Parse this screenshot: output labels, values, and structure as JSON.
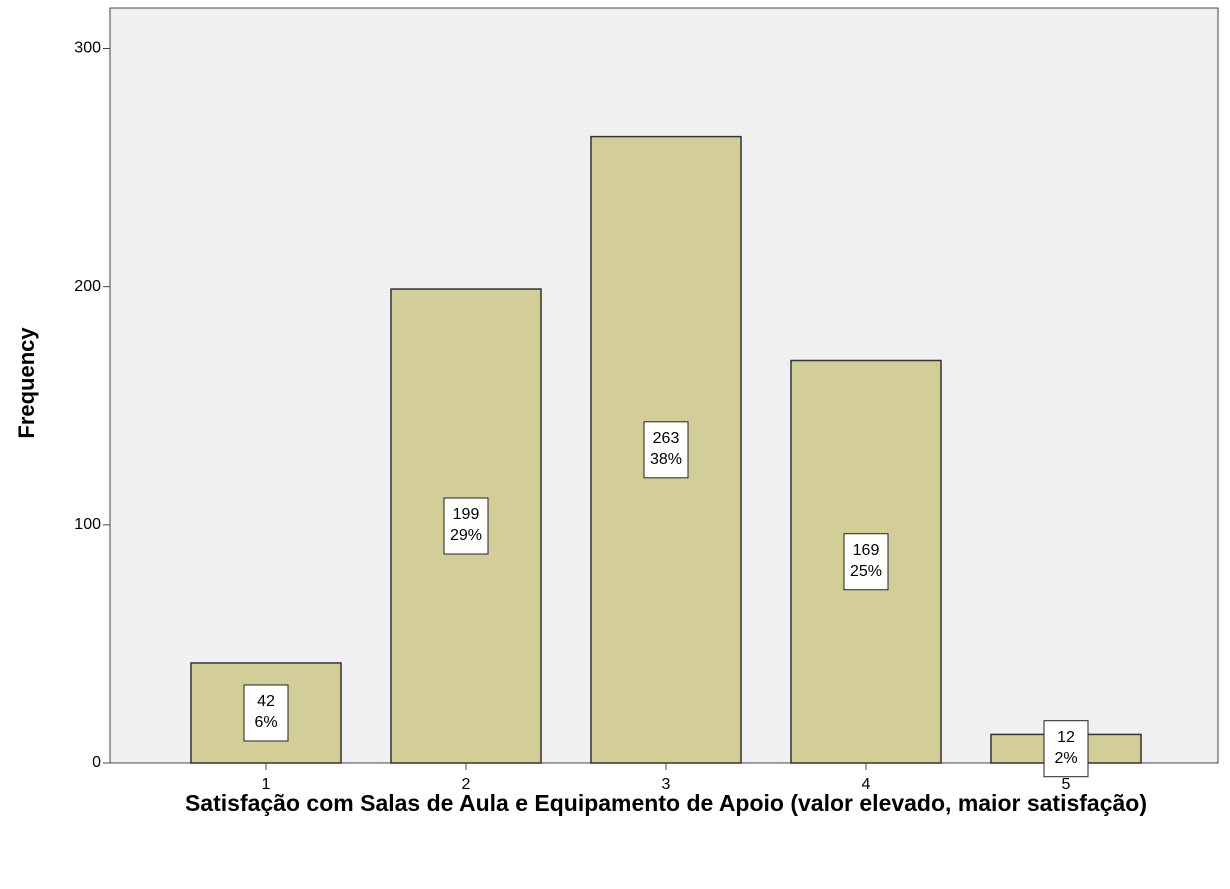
{
  "chart_data": {
    "type": "bar",
    "x_label": "Satisfação com Salas de Aula e Equipamento de Apoio (valor elevado, maior satisfação)",
    "y_label": "Frequency",
    "categories": [
      "1",
      "2",
      "3",
      "4",
      "5"
    ],
    "values": [
      42,
      199,
      263,
      169,
      12
    ],
    "percent_labels": [
      "6%",
      "29%",
      "38%",
      "25%",
      "2%"
    ],
    "color": "#d3ce97",
    "ylim": [
      0,
      317
    ],
    "yticks": [
      0,
      100,
      200,
      300
    ],
    "grid": false
  }
}
